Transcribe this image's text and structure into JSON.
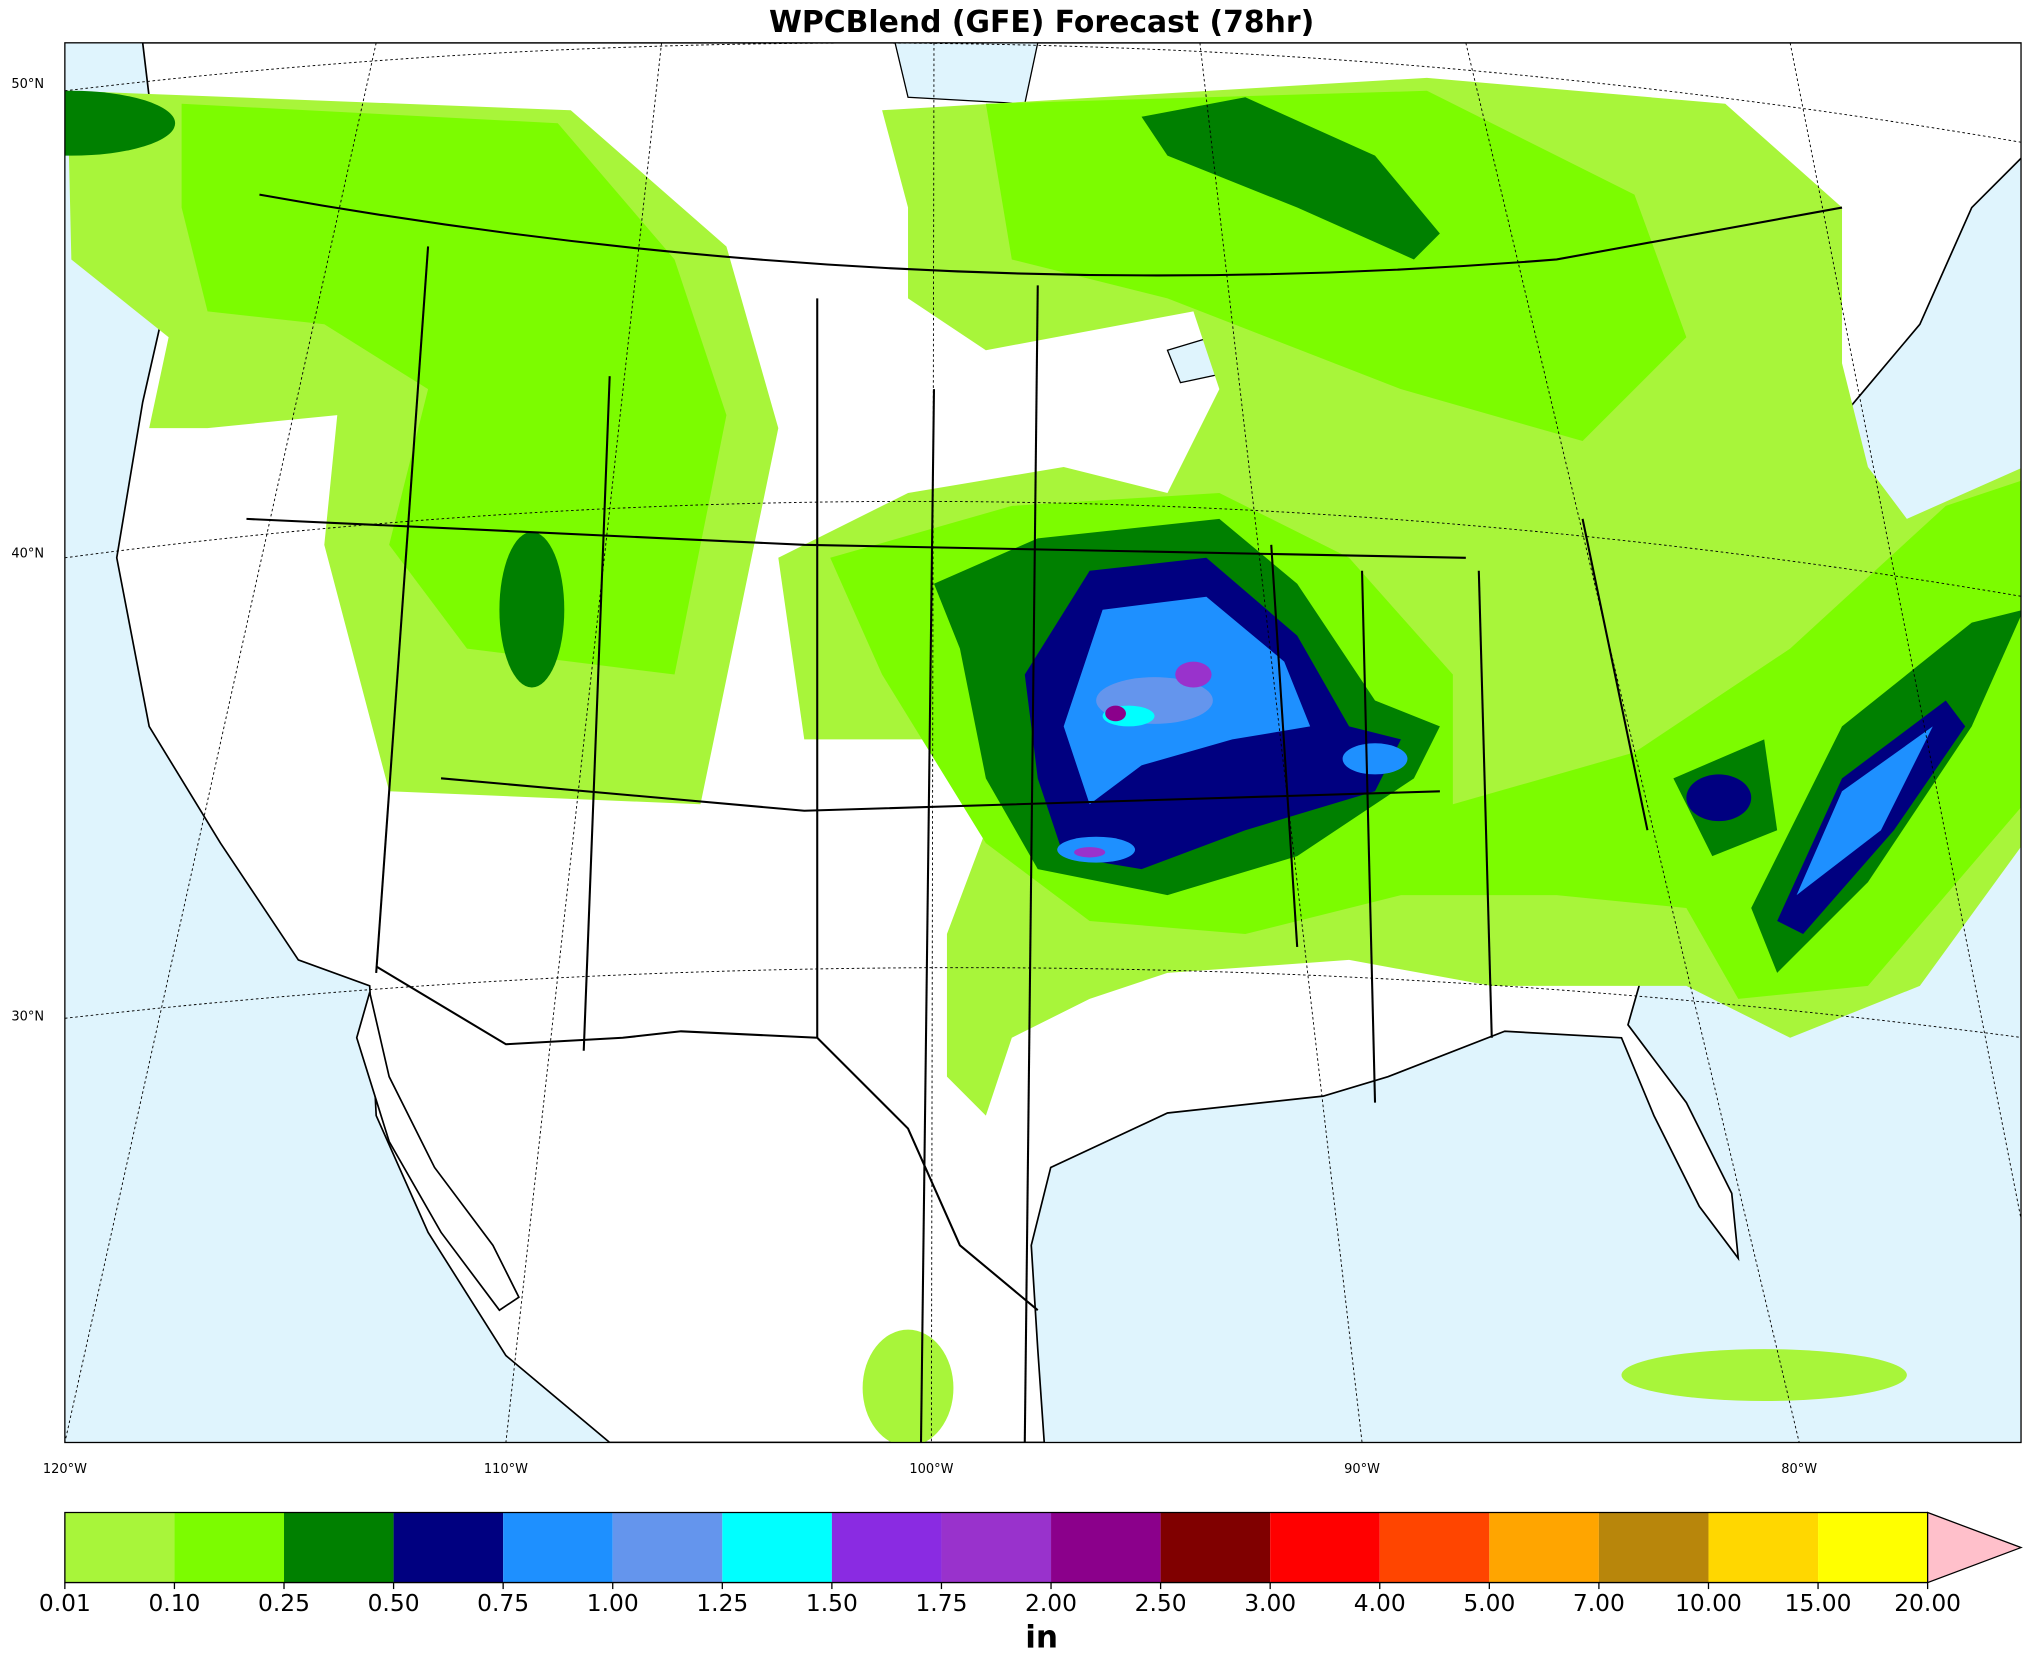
{
  "title": "WPCBlend (GFE) Forecast (78hr)",
  "map": {
    "lat_labels": [
      "50°N",
      "40°N",
      "30°N"
    ],
    "lon_labels": [
      "120°W",
      "110°W",
      "100°W",
      "90°W",
      "80°W"
    ]
  },
  "colorbar": {
    "label": "in",
    "ticks": [
      {
        "value": 0.01,
        "label": "0.01"
      },
      {
        "value": 0.1,
        "label": "0.10"
      },
      {
        "value": 0.25,
        "label": "0.25"
      },
      {
        "value": 0.5,
        "label": "0.50"
      },
      {
        "value": 0.75,
        "label": "0.75"
      },
      {
        "value": 1,
        "label": "1.00"
      },
      {
        "value": 1.25,
        "label": "1.25"
      },
      {
        "value": 1.5,
        "label": "1.50"
      },
      {
        "value": 1.75,
        "label": "1.75"
      },
      {
        "value": 2,
        "label": "2.00"
      },
      {
        "value": 2.5,
        "label": "2.50"
      },
      {
        "value": 3,
        "label": "3.00"
      },
      {
        "value": 4,
        "label": "4.00"
      },
      {
        "value": 5,
        "label": "5.00"
      },
      {
        "value": 7,
        "label": "7.00"
      },
      {
        "value": 10,
        "label": "10.00"
      },
      {
        "value": 15,
        "label": "15.00"
      },
      {
        "value": 20,
        "label": "20.00"
      }
    ],
    "colors": [
      "#a8f53a",
      "#7cfc00",
      "#008000",
      "#000080",
      "#1e90ff",
      "#6495ed",
      "#00ffff",
      "#8a2be2",
      "#9932cc",
      "#8b008b",
      "#800000",
      "#ff0000",
      "#ff4500",
      "#ffa500",
      "#b8860b",
      "#ffd700",
      "#ffff00"
    ],
    "extend_color": "#ffc0cb"
  }
}
